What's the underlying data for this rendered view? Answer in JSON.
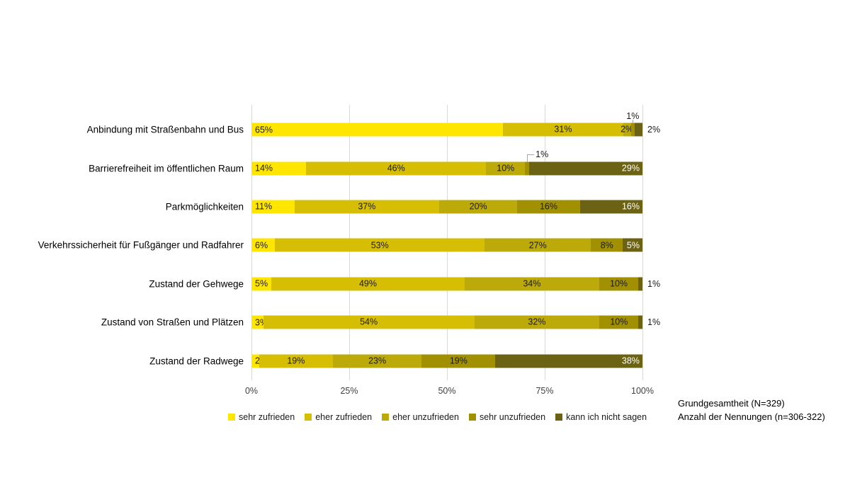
{
  "chart_data": {
    "type": "bar",
    "orientation": "horizontal",
    "stacked": true,
    "title": "",
    "xlabel": "",
    "ylabel": "",
    "xlim": [
      0,
      100
    ],
    "x_ticks": [
      "0%",
      "25%",
      "50%",
      "75%",
      "100%"
    ],
    "grid": "vertical-light-gray",
    "legend_position": "bottom",
    "legend": [
      {
        "label": "sehr zufrieden",
        "color": "#FFE600"
      },
      {
        "label": "eher zufrieden",
        "color": "#D6BE04"
      },
      {
        "label": "eher unzufrieden",
        "color": "#BCAA0B"
      },
      {
        "label": "sehr unzufrieden",
        "color": "#A19102"
      },
      {
        "label": "kann ich nicht sagen",
        "color": "#6B6214"
      }
    ],
    "rows": [
      {
        "category": "Anbindung mit Straßenbahn und Bus",
        "values": [
          65,
          31,
          2,
          1,
          2
        ],
        "labels": [
          "65%",
          "31%",
          "2%",
          "1%",
          "2%"
        ],
        "label_modes": [
          "base",
          "center",
          "center",
          "above",
          "outside"
        ]
      },
      {
        "category": "Barrierefreiheit im öffentlichen Raum",
        "values": [
          14,
          46,
          10,
          1,
          29
        ],
        "labels": [
          "14%",
          "46%",
          "10%",
          "1%",
          "29%"
        ],
        "label_modes": [
          "base",
          "center",
          "center",
          "callout",
          "inside-end"
        ]
      },
      {
        "category": "Parkmöglichkeiten",
        "values": [
          11,
          37,
          20,
          16,
          16
        ],
        "labels": [
          "11%",
          "37%",
          "20%",
          "16%",
          "16%"
        ],
        "label_modes": [
          "base",
          "center",
          "center",
          "center",
          "inside-end"
        ]
      },
      {
        "category": "Verkehrssicherheit für Fußgänger und Radfahrer",
        "values": [
          6,
          53,
          27,
          8,
          5
        ],
        "labels": [
          "6%",
          "53%",
          "27%",
          "8%",
          "5%"
        ],
        "label_modes": [
          "base",
          "center",
          "center",
          "center",
          "inside-end"
        ]
      },
      {
        "category": "Zustand der Gehwege",
        "values": [
          5,
          49,
          34,
          10,
          1
        ],
        "labels": [
          "5%",
          "49%",
          "34%",
          "10%",
          "1%"
        ],
        "label_modes": [
          "base",
          "center",
          "center",
          "center",
          "outside"
        ]
      },
      {
        "category": "Zustand von Straßen und Plätzen",
        "values": [
          3,
          54,
          32,
          10,
          1
        ],
        "labels": [
          "3%",
          "54%",
          "32%",
          "10%",
          "1%"
        ],
        "label_modes": [
          "base",
          "center",
          "center",
          "center",
          "outside"
        ]
      },
      {
        "category": "Zustand der Radwege",
        "values": [
          2,
          19,
          23,
          19,
          38
        ],
        "labels": [
          "2%",
          "19%",
          "23%",
          "19%",
          "38%"
        ],
        "label_modes": [
          "base",
          "center",
          "center",
          "center",
          "inside-end"
        ]
      }
    ]
  },
  "footnotes": [
    "Grundgesamtheit (N=329)",
    "Anzahl der Nennungen (n=306-322)"
  ]
}
